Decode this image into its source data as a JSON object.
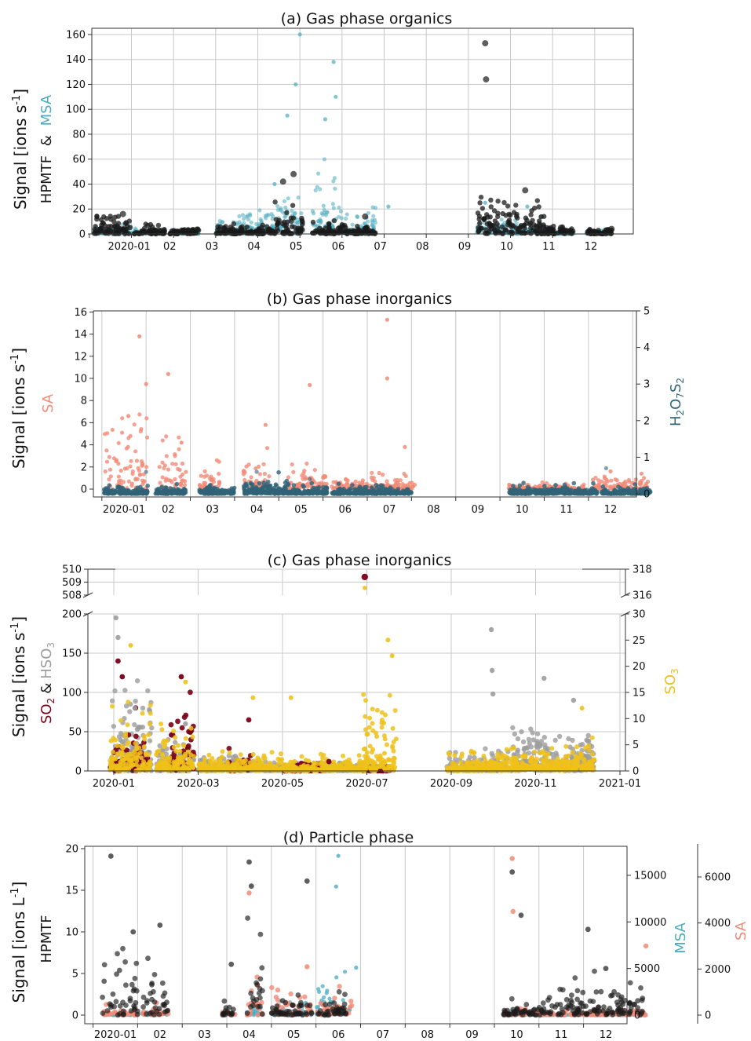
{
  "colors": {
    "hpmtf": "#1a1a1a",
    "msa": "#4bacc0",
    "sa": "#f28b78",
    "h2o7s2": "#2f6377",
    "so2": "#7a0018",
    "hso3": "#9c9c9c",
    "so3": "#eec11a"
  },
  "chart_data": [
    {
      "type": "scatter",
      "title": "(a) Gas phase organics",
      "ylabel": "Signal [ions s-1]",
      "ylabel_series": [
        "HPMTF",
        "&",
        "MSA"
      ],
      "x_tick_labels": [
        "2020-01",
        "02",
        "03",
        "04",
        "05",
        "06",
        "07",
        "08",
        "09",
        "10",
        "11",
        "12"
      ],
      "ylim": [
        0,
        165
      ],
      "y_ticks": [
        0,
        20,
        40,
        60,
        80,
        100,
        120,
        140,
        160
      ],
      "grid": true,
      "series": [
        {
          "name": "HPMTF",
          "color_key": "hpmtf",
          "peaks": [
            [
              0.3,
              16
            ],
            [
              4.1,
              42
            ],
            [
              4.35,
              48
            ],
            [
              8.9,
              153
            ],
            [
              8.92,
              124
            ],
            [
              9.85,
              35
            ],
            [
              6.05,
              14
            ],
            [
              10.7,
              5
            ],
            [
              11.9,
              4
            ]
          ]
        },
        {
          "name": "MSA",
          "color_key": "msa",
          "peaks": [
            [
              3.9,
              40
            ],
            [
              4.2,
              95
            ],
            [
              4.5,
              160
            ],
            [
              4.4,
              120
            ],
            [
              5.1,
              92
            ],
            [
              5.3,
              138
            ],
            [
              5.35,
              110
            ],
            [
              6.6,
              22
            ],
            [
              8.9,
              25
            ],
            [
              9.9,
              22
            ]
          ]
        }
      ]
    },
    {
      "type": "scatter",
      "title": "(b) Gas phase inorganics",
      "ylabel": "Signal [ions s-1]",
      "ylabel_left_series": "SA",
      "ylabel_right_series": "H2O7S2",
      "x_tick_labels": [
        "2020-01",
        "02",
        "03",
        "04",
        "05",
        "06",
        "07",
        "08",
        "09",
        "10",
        "11",
        "12"
      ],
      "ylim": [
        0,
        16
      ],
      "y_ticks": [
        0,
        2,
        4,
        6,
        8,
        10,
        12,
        14,
        16
      ],
      "y2lim": [
        0,
        5
      ],
      "y2_ticks": [
        0,
        1,
        2,
        3,
        4,
        5
      ],
      "grid": true,
      "series": [
        {
          "name": "SA",
          "color_key": "sa",
          "axis": "left",
          "peaks": [
            [
              0.1,
              6.6
            ],
            [
              0.35,
              13.8
            ],
            [
              0.5,
              9.5
            ],
            [
              1.0,
              10.4
            ],
            [
              1.3,
              4.2
            ],
            [
              2.1,
              2.6
            ],
            [
              3.2,
              5.8
            ],
            [
              4.2,
              9.4
            ],
            [
              5.95,
              15.3
            ],
            [
              5.95,
              10.0
            ],
            [
              6.35,
              3.8
            ],
            [
              11.0,
              1.6
            ],
            [
              11.7,
              1.4
            ]
          ]
        },
        {
          "name": "H2O7S2",
          "color_key": "h2o7s2",
          "axis": "right",
          "peaks": [
            [
              0.5,
              0.6
            ],
            [
              3.0,
              0.6
            ],
            [
              4.2,
              0.4
            ],
            [
              10.9,
              0.7
            ]
          ]
        }
      ]
    },
    {
      "type": "scatter",
      "title": "(c) Gas phase inorganics",
      "ylabel": "Signal [ions s-1]",
      "ylabel_left_series": [
        "SO2",
        "&",
        "HSO3"
      ],
      "ylabel_right_series": "SO3",
      "x_tick_labels": [
        "2020-01",
        "2020-03",
        "2020-05",
        "2020-07",
        "2020-09",
        "2020-11",
        "2021-01"
      ],
      "ylim": [
        0,
        200
      ],
      "y_ticks": [
        0,
        50,
        100,
        150,
        200
      ],
      "ylim_upper": [
        508,
        510
      ],
      "y_ticks_upper": [
        508,
        509,
        510
      ],
      "y2lim": [
        0,
        30
      ],
      "y2_ticks": [
        0,
        5,
        10,
        15,
        20,
        25,
        30
      ],
      "y2lim_upper": [
        316,
        318
      ],
      "y2_ticks_upper": [
        316,
        318
      ],
      "grid": true,
      "series": [
        {
          "name": "SO2",
          "color_key": "so2",
          "peaks": [
            [
              0.1,
              140
            ],
            [
              0.2,
              120
            ],
            [
              1.6,
              120
            ],
            [
              3.2,
              65
            ],
            [
              5.1,
              12
            ],
            [
              5.95,
              509.4
            ]
          ]
        },
        {
          "name": "HSO3",
          "color_key": "hso3",
          "peaks": [
            [
              0.05,
              195
            ],
            [
              0.1,
              170
            ],
            [
              0.5,
              80
            ],
            [
              1.7,
              60
            ],
            [
              8.95,
              180
            ],
            [
              8.97,
              128
            ],
            [
              8.99,
              98
            ],
            [
              10.2,
              118
            ],
            [
              10.9,
              90
            ]
          ]
        },
        {
          "name": "SO3",
          "color_key": "so3",
          "peaks": [
            [
              0.4,
              24
            ],
            [
              1.7,
              17
            ],
            [
              3.3,
              14
            ],
            [
              4.2,
              14
            ],
            [
              6.5,
              25
            ],
            [
              6.6,
              22
            ],
            [
              6.0,
              7
            ],
            [
              11.1,
              12
            ]
          ]
        }
      ]
    },
    {
      "type": "scatter",
      "title": "(d) Particle phase",
      "ylabel": "Signal [ions L-1]",
      "ylabel_left_series": "HPMTF",
      "ylabel_right_series": [
        "MSA",
        "SA"
      ],
      "x_tick_labels": [
        "2020-01",
        "02",
        "03",
        "04",
        "05",
        "06",
        "07",
        "08",
        "09",
        "10",
        "11",
        "12"
      ],
      "ylim": [
        -0.5,
        20
      ],
      "y_ticks": [
        0,
        5,
        10,
        15,
        20
      ],
      "y2lim": [
        -450,
        18000
      ],
      "y2_ticks": [
        0,
        5000,
        10000,
        15000
      ],
      "y3lim": [
        -175,
        7000
      ],
      "y3_ticks": [
        0,
        2000,
        4000,
        6000
      ],
      "grid": true,
      "series": [
        {
          "name": "HPMTF",
          "color_key": "hpmtf",
          "axis": "left",
          "peaks": [
            [
              -0.1,
              19.1
            ],
            [
              0.4,
              10
            ],
            [
              1.0,
              10.8
            ],
            [
              2.6,
              6.1
            ],
            [
              3.0,
              18.4
            ],
            [
              3.05,
              15.5
            ],
            [
              4.3,
              16.1
            ],
            [
              8.9,
              17.2
            ],
            [
              9.1,
              12
            ],
            [
              10.6,
              10.3
            ],
            [
              11.0,
              5.6
            ]
          ]
        },
        {
          "name": "MSA",
          "color_key": "msa",
          "axis": "middle",
          "peaks": [
            [
              5.0,
              17100
            ],
            [
              4.95,
              13800
            ],
            [
              5.4,
              5100
            ]
          ]
        },
        {
          "name": "SA",
          "color_key": "sa",
          "axis": "right",
          "peaks": [
            [
              3.0,
              5300
            ],
            [
              8.9,
              6800
            ],
            [
              8.92,
              4500
            ],
            [
              4.3,
              2100
            ],
            [
              11.9,
              3000
            ]
          ]
        }
      ]
    }
  ]
}
